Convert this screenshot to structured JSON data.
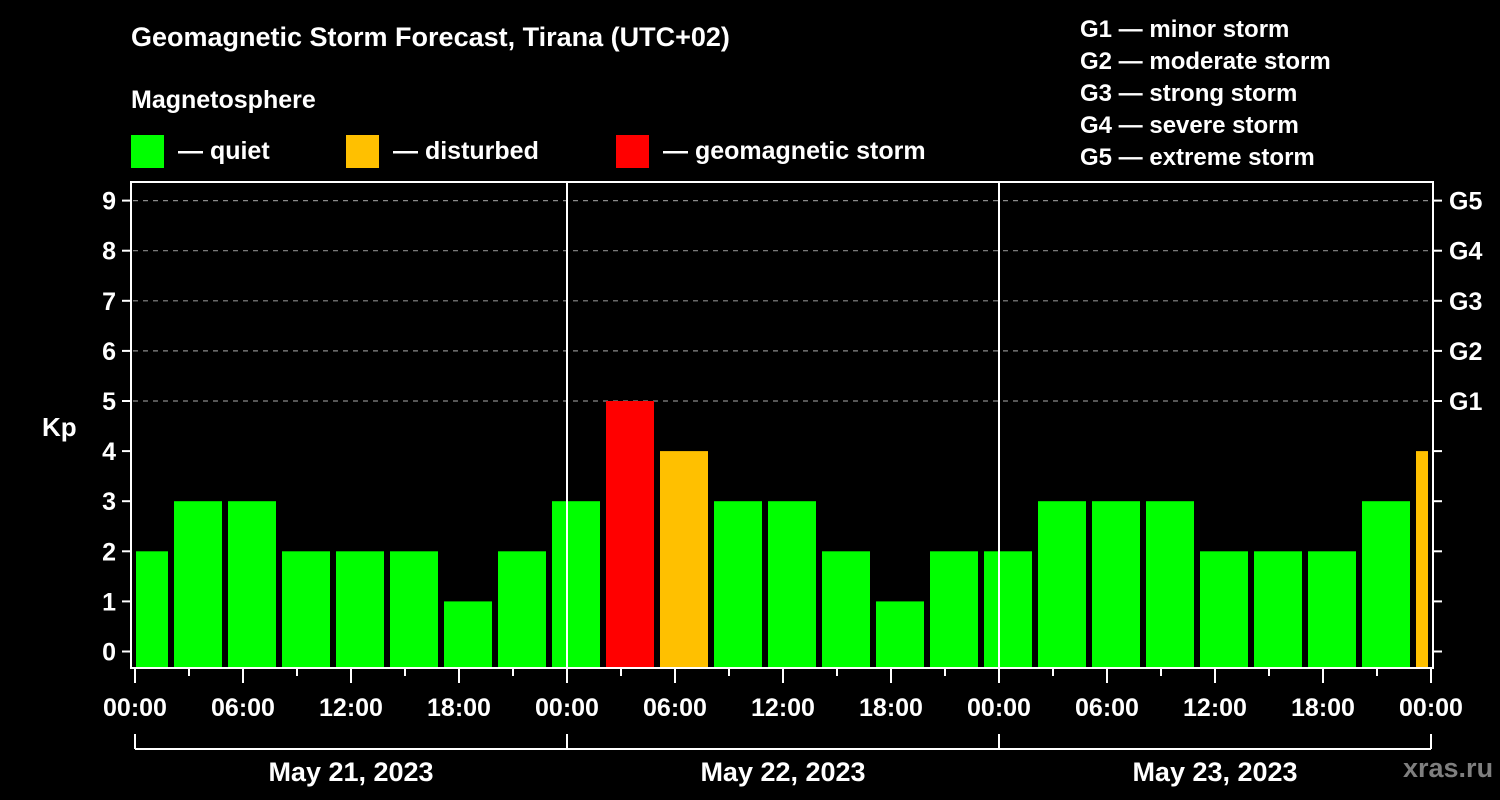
{
  "title": "Geomagnetic Storm Forecast, Tirana (UTC+02)",
  "subtitle": "Magnetosphere",
  "legend": [
    {
      "label": "— quiet",
      "color": "#00ff00"
    },
    {
      "label": "— disturbed",
      "color": "#ffc000"
    },
    {
      "label": "— geomagnetic storm",
      "color": "#ff0000"
    }
  ],
  "g_scale_legend": [
    "G1 — minor storm",
    "G2 — moderate storm",
    "G3 — strong storm",
    "G4 — severe storm",
    "G5 — extreme storm"
  ],
  "watermark": "xras.ru",
  "chart_data": {
    "type": "bar",
    "title": "Geomagnetic Storm Forecast, Tirana (UTC+02)",
    "subtitle": "Magnetosphere",
    "ylabel": "Kp",
    "xlabel": "",
    "ylim": [
      0,
      9
    ],
    "yticks": [
      0,
      1,
      2,
      3,
      4,
      5,
      6,
      7,
      8,
      9
    ],
    "right_axis_ticks": [
      {
        "kp": 5,
        "label": "G1"
      },
      {
        "kp": 6,
        "label": "G2"
      },
      {
        "kp": 7,
        "label": "G3"
      },
      {
        "kp": 8,
        "label": "G4"
      },
      {
        "kp": 9,
        "label": "G5"
      }
    ],
    "grid": "dashed horizontal at Kp 5–9",
    "xtick_labels": [
      "00:00",
      "06:00",
      "12:00",
      "18:00",
      "00:00",
      "06:00",
      "12:00",
      "18:00",
      "00:00",
      "06:00",
      "12:00",
      "18:00",
      "00:00"
    ],
    "day_labels": [
      "May 21, 2023",
      "May 22, 2023",
      "May 23, 2023"
    ],
    "interval_hours": 3,
    "series": [
      {
        "name": "Kp index",
        "start_hour_offset": -1,
        "categories": [
          "May 21 ~00:00",
          "May 21 02:00",
          "May 21 05:00",
          "May 21 08:00",
          "May 21 11:00",
          "May 21 14:00",
          "May 21 17:00",
          "May 21 20:00",
          "May 21 23:00",
          "May 22 02:00",
          "May 22 05:00",
          "May 22 08:00",
          "May 22 11:00",
          "May 22 14:00",
          "May 22 17:00",
          "May 22 20:00",
          "May 22 23:00",
          "May 23 02:00",
          "May 23 05:00",
          "May 23 08:00",
          "May 23 11:00",
          "May 23 14:00",
          "May 23 17:00",
          "May 23 20:00",
          "May 23 23:00"
        ],
        "values": [
          2,
          3,
          3,
          2,
          2,
          2,
          1,
          2,
          3,
          5,
          4,
          3,
          3,
          2,
          1,
          2,
          2,
          3,
          3,
          3,
          2,
          2,
          2,
          3,
          4
        ],
        "status": [
          "quiet",
          "quiet",
          "quiet",
          "quiet",
          "quiet",
          "quiet",
          "quiet",
          "quiet",
          "quiet",
          "storm",
          "disturbed",
          "quiet",
          "quiet",
          "quiet",
          "quiet",
          "quiet",
          "quiet",
          "quiet",
          "quiet",
          "quiet",
          "quiet",
          "quiet",
          "quiet",
          "quiet",
          "disturbed"
        ]
      }
    ],
    "colors": {
      "quiet": "#00ff00",
      "disturbed": "#ffc000",
      "storm": "#ff0000"
    }
  }
}
